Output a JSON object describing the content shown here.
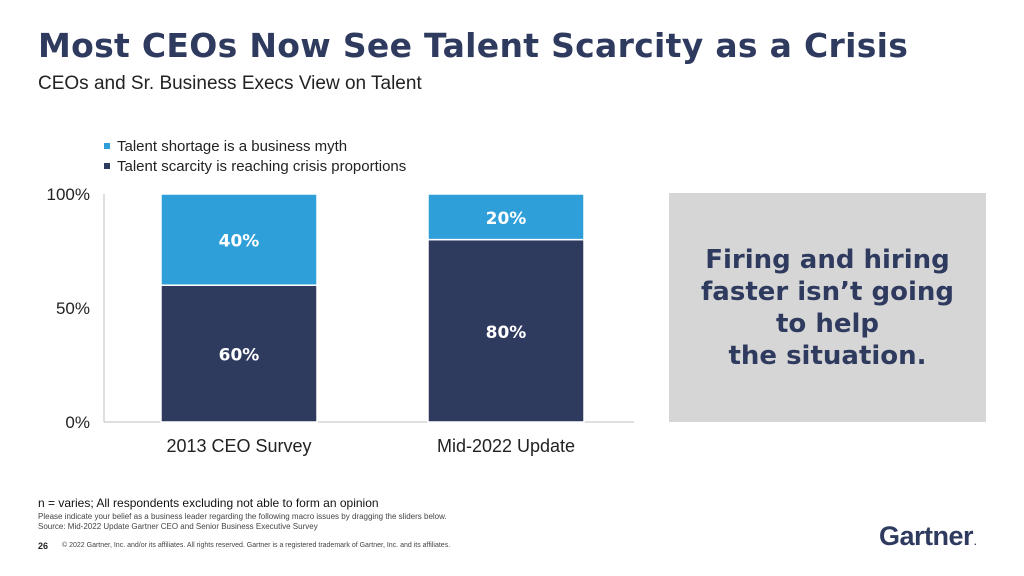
{
  "slide": {
    "title": "Most CEOs Now See Talent Scarcity as a Crisis",
    "subtitle": "CEOs and Sr. Business Execs View on Talent",
    "callout": "Firing and hiring\nfaster isn’t going\nto help\nthe situation.",
    "footnote": "n = varies; All respondents excluding not able to form an opinion",
    "question": "Please indicate your belief as a business leader regarding the following macro issues by dragging the sliders below.",
    "source": "Source: Mid-2022 Update Gartner CEO and Senior Business Executive Survey",
    "page_number": "26",
    "copyright": "© 2022 Gartner, Inc. and/or its affiliates. All rights reserved. Gartner is a registered trademark of Gartner, Inc. and its affiliates.",
    "logo": "Gartner",
    "logo_mark": "."
  },
  "colors": {
    "accent_light": "#2e9fd8",
    "accent_dark": "#2f3a5f",
    "callout_bg": "#d6d6d6"
  },
  "chart_data": {
    "type": "bar",
    "stacked": true,
    "categories": [
      "2013 CEO Survey",
      "Mid-2022 Update"
    ],
    "series": [
      {
        "name": "Talent scarcity is reaching crisis proportions",
        "values": [
          60,
          80
        ],
        "color": "#2f3a5f"
      },
      {
        "name": "Talent shortage is a business myth",
        "values": [
          40,
          20
        ],
        "color": "#2e9fd8"
      }
    ],
    "legend_order": [
      1,
      0
    ],
    "data_labels": [
      [
        "60%",
        "80%"
      ],
      [
        "40%",
        "20%"
      ]
    ],
    "ylim": [
      0,
      100
    ],
    "yticks": [
      0,
      50,
      100
    ],
    "ytick_labels": [
      "0%",
      "50%",
      "100%"
    ],
    "legend_position": "top-left",
    "grid": false
  }
}
